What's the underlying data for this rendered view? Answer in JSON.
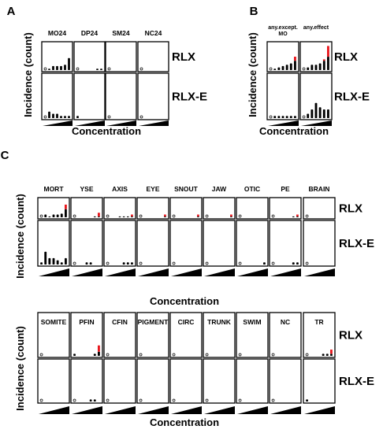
{
  "chart_data": [
    {
      "type": "bar",
      "panel": "A",
      "ylabel": "Incidence (count)",
      "xlabel": "Concentration",
      "facets": [
        "MO24",
        "DP24",
        "SM24",
        "NC24"
      ],
      "rows": [
        "RLX",
        "RLX-E"
      ],
      "ylim": [
        0,
        20
      ],
      "concentrations": 7,
      "values": {
        "RLX": [
          {
            "base": [
              0,
              1,
              3,
              3,
              3,
              4,
              9
            ],
            "excess": [
              0,
              0,
              0,
              0,
              0,
              0,
              0
            ]
          },
          {
            "base": [
              0,
              0,
              0,
              0,
              0,
              1,
              1
            ],
            "excess": [
              0,
              0,
              0,
              0,
              0,
              0,
              0
            ]
          },
          {
            "base": [
              0,
              0,
              0,
              0,
              0,
              0,
              0
            ],
            "excess": [
              0,
              0,
              0,
              0,
              0,
              0,
              0
            ]
          },
          {
            "base": [
              0,
              0,
              0,
              0,
              0,
              0,
              0
            ],
            "excess": [
              0,
              0,
              0,
              0,
              0,
              0,
              0
            ]
          }
        ],
        "RLX-E": [
          {
            "base": [
              0,
              3,
              2,
              2,
              1,
              1,
              1
            ],
            "excess": [
              0,
              0,
              0,
              0,
              0,
              0,
              0
            ]
          },
          {
            "base": [
              1,
              0,
              0,
              0,
              0,
              0,
              0
            ],
            "excess": [
              0,
              0,
              0,
              0,
              0,
              0,
              0
            ]
          },
          {
            "base": [
              0,
              0,
              0,
              0,
              0,
              0,
              0
            ],
            "excess": [
              0,
              0,
              0,
              0,
              0,
              0,
              0
            ]
          },
          {
            "base": [
              0,
              0,
              0,
              0,
              0,
              0,
              0
            ],
            "excess": [
              0,
              0,
              0,
              0,
              0,
              0,
              0
            ]
          }
        ]
      }
    },
    {
      "type": "bar",
      "panel": "B",
      "ylabel": "Incidence (count)",
      "xlabel": "Concentration",
      "facets": [
        "any.except.\nMO",
        "any.effect"
      ],
      "rows": [
        "RLX",
        "RLX-E"
      ],
      "ylim": [
        0,
        20
      ],
      "concentrations": 7,
      "values": {
        "RLX": [
          {
            "base": [
              0,
              1,
              2,
              3,
              4,
              5,
              7
            ],
            "excess": [
              0,
              0,
              0,
              0,
              0,
              0,
              3
            ]
          },
          {
            "base": [
              0,
              2,
              4,
              4,
              5,
              7,
              10
            ],
            "excess": [
              0,
              0,
              0,
              0,
              0,
              1,
              8
            ]
          }
        ],
        "RLX-E": [
          {
            "base": [
              0,
              1,
              1,
              1,
              1,
              1,
              1
            ],
            "excess": [
              0,
              0,
              0,
              0,
              0,
              0,
              0
            ]
          },
          {
            "base": [
              0,
              2,
              4,
              7,
              5,
              4,
              4
            ],
            "excess": [
              0,
              0,
              0,
              0,
              0,
              0,
              0
            ]
          }
        ]
      }
    },
    {
      "type": "bar",
      "panel": "C",
      "ylabel": "Incidence (count)",
      "xlabel": "Concentration",
      "facets": [
        "MORT",
        "YSE",
        "AXIS",
        "EYE",
        "SNOUT",
        "JAW",
        "OTIC",
        "PE",
        "BRAIN"
      ],
      "rows": [
        "RLX",
        "RLX-E"
      ],
      "ylim": [
        0,
        20
      ],
      "concentrations": 7,
      "values": {
        "RLX": [
          {
            "base": [
              0,
              3,
              1,
              3,
              3,
              4,
              9
            ],
            "excess": [
              0,
              0,
              0,
              0,
              0,
              0,
              5
            ]
          },
          {
            "base": [
              0,
              0,
              0,
              0,
              0,
              1,
              1
            ],
            "excess": [
              0,
              0,
              0,
              0,
              0,
              0,
              4
            ]
          },
          {
            "base": [
              0,
              0,
              0,
              1,
              1,
              1,
              1
            ],
            "excess": [
              0,
              0,
              0,
              0,
              0,
              0,
              2
            ]
          },
          {
            "base": [
              0,
              0,
              0,
              0,
              0,
              0,
              1
            ],
            "excess": [
              0,
              0,
              0,
              0,
              0,
              0,
              2
            ]
          },
          {
            "base": [
              0,
              0,
              0,
              0,
              0,
              0,
              1
            ],
            "excess": [
              0,
              0,
              0,
              0,
              0,
              0,
              2
            ]
          },
          {
            "base": [
              0,
              0,
              0,
              0,
              0,
              0,
              1
            ],
            "excess": [
              0,
              0,
              0,
              0,
              0,
              0,
              2
            ]
          },
          {
            "base": [
              0,
              0,
              0,
              0,
              0,
              0,
              0
            ],
            "excess": [
              0,
              0,
              0,
              0,
              0,
              0,
              0
            ]
          },
          {
            "base": [
              0,
              0,
              0,
              0,
              0,
              1,
              1
            ],
            "excess": [
              0,
              0,
              0,
              0,
              0,
              0,
              2
            ]
          },
          {
            "base": [
              0,
              0,
              0,
              0,
              0,
              0,
              0
            ],
            "excess": [
              0,
              0,
              0,
              0,
              0,
              0,
              0
            ]
          }
        ],
        "RLX-E": [
          {
            "base": [
              1,
              6,
              3,
              3,
              2,
              1,
              3
            ],
            "excess": [
              0,
              0,
              0,
              0,
              0,
              0,
              0
            ]
          },
          {
            "base": [
              0,
              0,
              0,
              1,
              1,
              0,
              0
            ],
            "excess": [
              0,
              0,
              0,
              0,
              0,
              0,
              0
            ]
          },
          {
            "base": [
              0,
              0,
              0,
              0,
              1,
              1,
              1
            ],
            "excess": [
              0,
              0,
              0,
              0,
              0,
              0,
              0
            ]
          },
          {
            "base": [
              0,
              0,
              0,
              0,
              0,
              0,
              0
            ],
            "excess": [
              0,
              0,
              0,
              0,
              0,
              0,
              0
            ]
          },
          {
            "base": [
              0,
              0,
              0,
              0,
              0,
              0,
              0
            ],
            "excess": [
              0,
              0,
              0,
              0,
              0,
              0,
              0
            ]
          },
          {
            "base": [
              0,
              0,
              0,
              0,
              0,
              0,
              0
            ],
            "excess": [
              0,
              0,
              0,
              0,
              0,
              0,
              0
            ]
          },
          {
            "base": [
              0,
              0,
              0,
              0,
              0,
              0,
              1
            ],
            "excess": [
              0,
              0,
              0,
              0,
              0,
              0,
              0
            ]
          },
          {
            "base": [
              0,
              0,
              0,
              0,
              0,
              1,
              1
            ],
            "excess": [
              0,
              0,
              0,
              0,
              0,
              0,
              0
            ]
          },
          {
            "base": [
              0,
              0,
              0,
              0,
              0,
              0,
              0
            ],
            "excess": [
              0,
              0,
              0,
              0,
              0,
              0,
              0
            ]
          }
        ]
      }
    },
    {
      "type": "bar",
      "panel": "",
      "ylabel": "Incidence (count)",
      "xlabel": "Concentration",
      "facets": [
        "SOMITE",
        "PFIN",
        "CFIN",
        "PIGMENT",
        "CIRC",
        "TRUNK",
        "SWIM",
        "NC",
        "TR"
      ],
      "rows": [
        "RLX",
        "RLX-E"
      ],
      "ylim": [
        0,
        20
      ],
      "concentrations": 7,
      "values": {
        "RLX": [
          {
            "base": [
              0,
              0,
              0,
              0,
              0,
              0,
              0
            ],
            "excess": [
              0,
              0,
              0,
              0,
              0,
              0,
              0
            ]
          },
          {
            "base": [
              1,
              0,
              0,
              0,
              0,
              1,
              2
            ],
            "excess": [
              0,
              0,
              0,
              0,
              0,
              0,
              3
            ]
          },
          {
            "base": [
              0,
              0,
              0,
              0,
              0,
              0,
              0
            ],
            "excess": [
              0,
              0,
              0,
              0,
              0,
              0,
              0
            ]
          },
          {
            "base": [
              0,
              0,
              0,
              0,
              0,
              0,
              0
            ],
            "excess": [
              0,
              0,
              0,
              0,
              0,
              0,
              0
            ]
          },
          {
            "base": [
              0,
              0,
              0,
              0,
              0,
              0,
              0
            ],
            "excess": [
              0,
              0,
              0,
              0,
              0,
              0,
              0
            ]
          },
          {
            "base": [
              0,
              0,
              0,
              0,
              0,
              0,
              0
            ],
            "excess": [
              0,
              0,
              0,
              0,
              0,
              0,
              0
            ]
          },
          {
            "base": [
              0,
              0,
              0,
              0,
              0,
              0,
              0
            ],
            "excess": [
              0,
              0,
              0,
              0,
              0,
              0,
              0
            ]
          },
          {
            "base": [
              0,
              0,
              0,
              0,
              0,
              0,
              0
            ],
            "excess": [
              0,
              0,
              0,
              0,
              0,
              0,
              0
            ]
          },
          {
            "base": [
              0,
              0,
              0,
              0,
              1,
              1,
              1
            ],
            "excess": [
              0,
              0,
              0,
              0,
              0,
              0,
              2
            ]
          }
        ],
        "RLX-E": [
          {
            "base": [
              0,
              0,
              0,
              0,
              0,
              0,
              0
            ],
            "excess": [
              0,
              0,
              0,
              0,
              0,
              0,
              0
            ]
          },
          {
            "base": [
              0,
              0,
              0,
              0,
              1,
              1,
              0
            ],
            "excess": [
              0,
              0,
              0,
              0,
              0,
              0,
              0
            ]
          },
          {
            "base": [
              0,
              0,
              0,
              0,
              0,
              0,
              0
            ],
            "excess": [
              0,
              0,
              0,
              0,
              0,
              0,
              0
            ]
          },
          {
            "base": [
              0,
              0,
              0,
              0,
              0,
              0,
              0
            ],
            "excess": [
              0,
              0,
              0,
              0,
              0,
              0,
              0
            ]
          },
          {
            "base": [
              0,
              0,
              0,
              0,
              0,
              0,
              0
            ],
            "excess": [
              0,
              0,
              0,
              0,
              0,
              0,
              0
            ]
          },
          {
            "base": [
              0,
              0,
              0,
              0,
              0,
              0,
              0
            ],
            "excess": [
              0,
              0,
              0,
              0,
              0,
              0,
              0
            ]
          },
          {
            "base": [
              0,
              0,
              0,
              0,
              0,
              0,
              0
            ],
            "excess": [
              0,
              0,
              0,
              0,
              0,
              0,
              0
            ]
          },
          {
            "base": [
              0,
              0,
              0,
              0,
              0,
              0,
              0
            ],
            "excess": [
              0,
              0,
              0,
              0,
              0,
              0,
              0
            ]
          },
          {
            "base": [
              1,
              0,
              0,
              0,
              0,
              0,
              0
            ],
            "excess": [
              0,
              0,
              0,
              0,
              0,
              0,
              0
            ]
          }
        ]
      }
    }
  ],
  "colors": {
    "base_bar": "#000000",
    "excess_bar": "#e8151b",
    "zero_marker_stroke": "#000000",
    "panel_border": "#000000",
    "wedge": "#000000"
  }
}
